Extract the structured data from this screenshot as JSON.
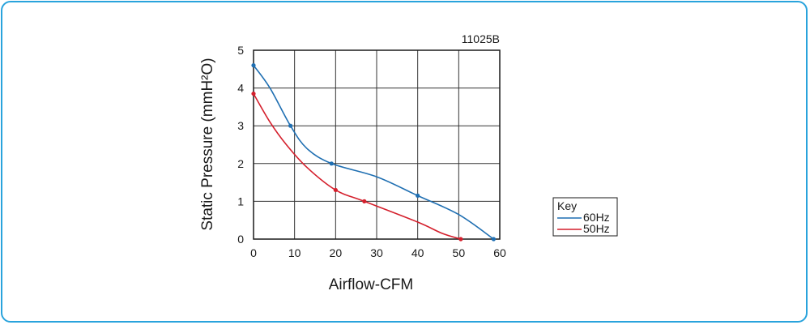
{
  "chart_data": {
    "type": "line",
    "model": "11025B",
    "xlabel": "Airflow-CFM",
    "ylabel": "Static Pressure (mmH²O)",
    "xlim": [
      0,
      60
    ],
    "ylim": [
      0,
      5
    ],
    "x_ticks": [
      "0",
      "10",
      "20",
      "30",
      "40",
      "50",
      "60"
    ],
    "y_ticks": [
      "0",
      "1",
      "2",
      "3",
      "4",
      "5"
    ],
    "grid": true,
    "legend": {
      "title": "Key",
      "placement": "right"
    },
    "series": [
      {
        "name": "60Hz",
        "color": "#1f6fb2",
        "x": [
          0,
          4,
          9,
          13,
          19,
          30,
          40,
          50,
          58.5
        ],
        "y": [
          4.6,
          4.0,
          3.0,
          2.4,
          2.0,
          1.65,
          1.15,
          0.65,
          0
        ],
        "markers_x": [
          0,
          9,
          19,
          40,
          58.5
        ],
        "markers_y": [
          4.6,
          3.0,
          2.0,
          1.15,
          0
        ]
      },
      {
        "name": "50Hz",
        "color": "#d41f2c",
        "x": [
          0,
          4,
          8,
          13,
          20,
          27,
          40,
          46,
          50.5
        ],
        "y": [
          3.85,
          3.1,
          2.5,
          1.9,
          1.3,
          1.0,
          0.45,
          0.15,
          0
        ],
        "markers_x": [
          0,
          20,
          27,
          50.5
        ],
        "markers_y": [
          3.85,
          1.3,
          1.0,
          0
        ]
      }
    ]
  }
}
